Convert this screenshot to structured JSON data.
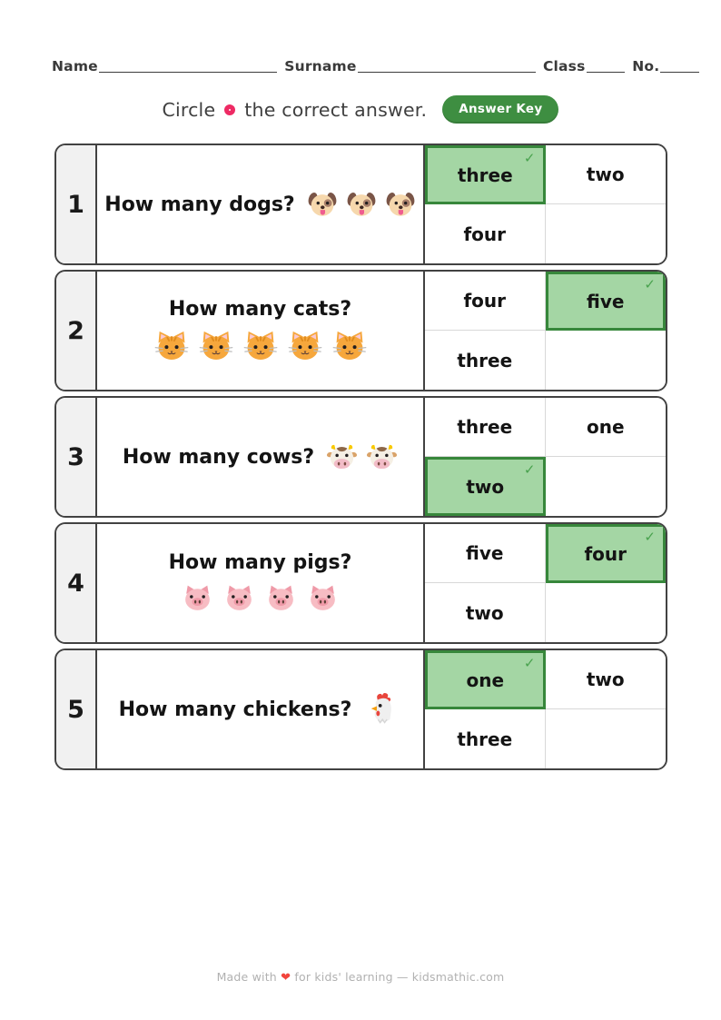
{
  "header": {
    "name_label": "Name",
    "surname_label": "Surname",
    "class_label": "Class",
    "no_label": "No."
  },
  "instruction": {
    "text_before": "Circle",
    "text_after": "the correct answer.",
    "answer_key_label": "Answer Key"
  },
  "icons": {
    "circle_ring_color": "#ee2a64",
    "checkmark": "✓",
    "heart": "❤"
  },
  "colors": {
    "box_border": "#424242",
    "selected_bg": "#a4d6a4",
    "selected_border": "#37873b",
    "check_green": "#49a24e",
    "badge_bg": "#3e8e41",
    "number_col_bg": "#f1f1f1",
    "grid_line": "#d8d8d8"
  },
  "questions": [
    {
      "number": "1",
      "text": "How many dogs?",
      "animal": "dog",
      "emoji": "🐶",
      "count": 3,
      "layout": "inline",
      "emoji_size": 34,
      "answers": [
        {
          "label": "three",
          "correct": true
        },
        {
          "label": "two",
          "correct": false
        },
        {
          "label": "four",
          "correct": false
        },
        {
          "label": "",
          "correct": false
        }
      ]
    },
    {
      "number": "2",
      "text": "How many cats?",
      "animal": "cat",
      "emoji": "🐱",
      "count": 5,
      "layout": "stacked",
      "emoji_size": 40,
      "answers": [
        {
          "label": "four",
          "correct": false
        },
        {
          "label": "five",
          "correct": true
        },
        {
          "label": "three",
          "correct": false
        },
        {
          "label": "",
          "correct": false
        }
      ]
    },
    {
      "number": "3",
      "text": "How many cows?",
      "animal": "cow",
      "emoji": "🐮",
      "count": 2,
      "layout": "inline",
      "emoji_size": 35,
      "answers": [
        {
          "label": "three",
          "correct": false
        },
        {
          "label": "one",
          "correct": false
        },
        {
          "label": "two",
          "correct": true
        },
        {
          "label": "",
          "correct": false
        }
      ]
    },
    {
      "number": "4",
      "text": "How many pigs?",
      "animal": "pig",
      "emoji": "🐷",
      "count": 4,
      "layout": "stacked",
      "emoji_size": 37,
      "answers": [
        {
          "label": "five",
          "correct": false
        },
        {
          "label": "four",
          "correct": true
        },
        {
          "label": "two",
          "correct": false
        },
        {
          "label": "",
          "correct": false
        }
      ]
    },
    {
      "number": "5",
      "text": "How many chickens?",
      "animal": "chicken",
      "emoji": "🐔",
      "count": 1,
      "layout": "inline",
      "emoji_size": 42,
      "answers": [
        {
          "label": "one",
          "correct": true
        },
        {
          "label": "two",
          "correct": false
        },
        {
          "label": "three",
          "correct": false
        },
        {
          "label": "",
          "correct": false
        }
      ]
    }
  ],
  "footer": {
    "text_before_heart": "Made with",
    "text_after_heart": "for kids' learning — kidsmathic.com"
  }
}
